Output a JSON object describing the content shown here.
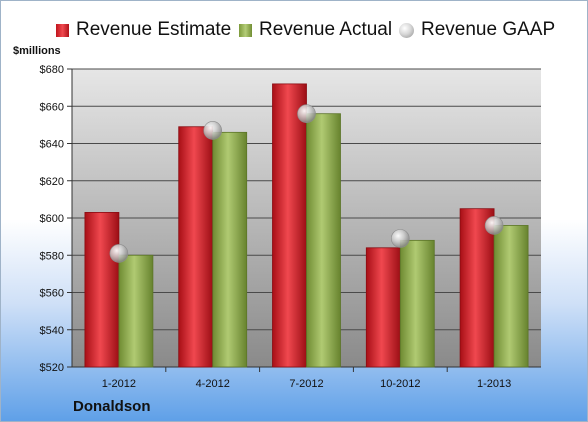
{
  "chart_data": {
    "type": "bar",
    "unit_label": "$millions",
    "company": "Donaldson",
    "categories": [
      "1-2012",
      "4-2012",
      "7-2012",
      "10-2012",
      "1-2013"
    ],
    "series": [
      {
        "name": "Revenue Estimate",
        "type": "bar",
        "color": "#d41a22",
        "values": [
          603,
          649,
          672,
          584,
          605
        ]
      },
      {
        "name": "Revenue Actual",
        "type": "bar",
        "color": "#90ae52",
        "values": [
          580,
          646,
          656,
          588,
          596
        ]
      },
      {
        "name": "Revenue GAAP",
        "type": "marker",
        "color": "#c8c8c8",
        "values": [
          581,
          647,
          656,
          589,
          596
        ]
      }
    ],
    "ylim": [
      520,
      680
    ],
    "yticks": [
      "$520",
      "$540",
      "$560",
      "$580",
      "$600",
      "$620",
      "$640",
      "$660",
      "$680"
    ],
    "ytick_values": [
      520,
      540,
      560,
      580,
      600,
      620,
      640,
      660,
      680
    ],
    "grid": true,
    "legend_position": "top"
  }
}
